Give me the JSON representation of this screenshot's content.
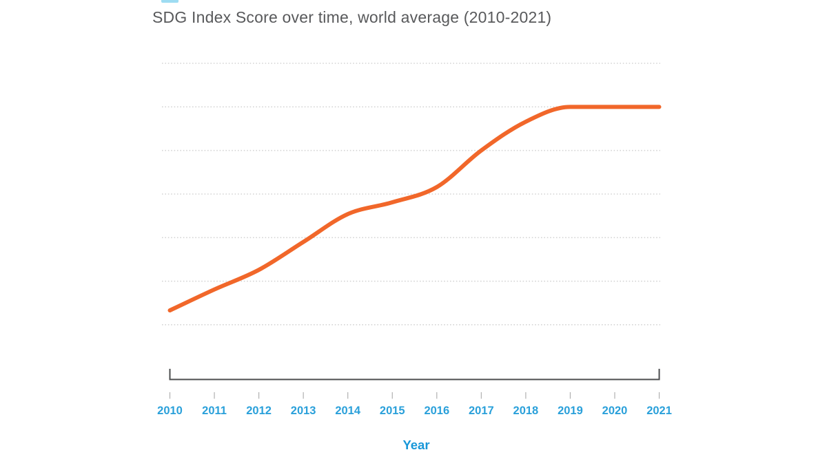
{
  "window": {
    "background": "#ffffff"
  },
  "chart_data": {
    "type": "line",
    "title": "SDG Index Score over time, world average (2010-2021)",
    "xlabel": "Year",
    "ylabel": "",
    "x_tick_labels": [
      "2010",
      "2011",
      "2012",
      "2013",
      "2014",
      "2015",
      "2016",
      "2017",
      "2018",
      "2019",
      "2020",
      "2021"
    ],
    "x_range": [
      2010,
      2021
    ],
    "y_axis": {
      "tick_labels_visible": false,
      "gridline_count": 7,
      "gridline_style": "dotted",
      "note": "no numeric y-axis labels are shown; series values below are measured in gridline units above the bottom gridline (0 = bottom gridline, 6 = top gridline)"
    },
    "series": [
      {
        "name": "SDG Index Score, world average",
        "x": [
          2010,
          2011,
          2012,
          2013,
          2014,
          2015,
          2016,
          2017,
          2018,
          2019,
          2020,
          2021
        ],
        "values": [
          0.33,
          0.81,
          1.26,
          1.9,
          2.54,
          2.81,
          3.16,
          4.0,
          4.66,
          5.0,
          5.0,
          5.0
        ]
      }
    ],
    "legend": "none",
    "grid": "horizontal dotted lines only",
    "axis_style": "bracket baseline with end risers, tick marks below, flat plateau of line sits exactly on second gridline from top"
  },
  "colors": {
    "line": "#f1672a",
    "title_text": "#58595b",
    "year_labels": "#2aa0da",
    "axis_title": "#1897d8",
    "axis_bracket": "#4b4c4e",
    "tick_marks": "#b0b0b0",
    "gridlines": "#d4d4d4",
    "top_edge_mark": "#9edcf2"
  }
}
